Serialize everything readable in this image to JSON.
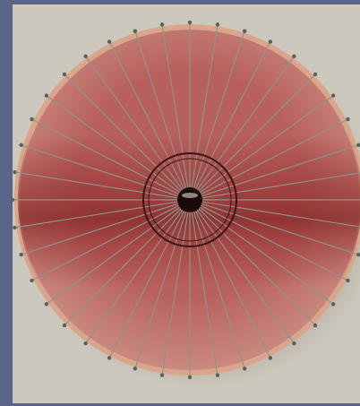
{
  "scene": {
    "subject": "parasol-top-view",
    "rib_count": 40,
    "colors": {
      "backdrop": "#cdc8bd",
      "frame_blue": "#5b6489",
      "canopy_light": "#c98a7f",
      "canopy_mid": "#b8605d",
      "canopy_dark": "#8e2a2a",
      "canopy_rim": "#d9a58c",
      "rib": "#8e9488",
      "rib_tip": "#5a6256",
      "hub_ring": "#3a1515",
      "hub_cap": "#1a0a0a"
    }
  }
}
